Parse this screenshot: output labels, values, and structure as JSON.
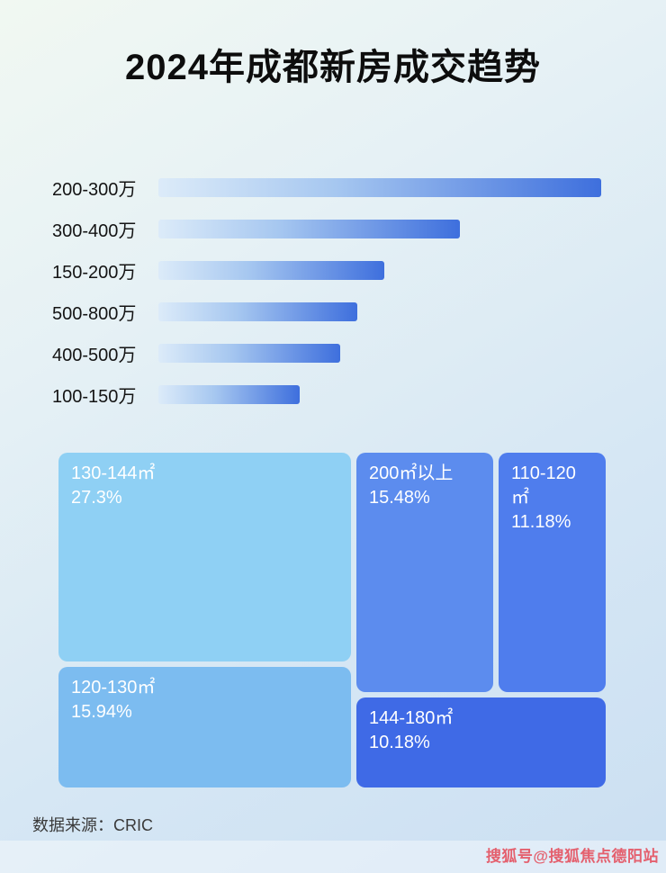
{
  "title": "2024年成都新房成交趋势",
  "chart_data": [
    {
      "type": "bar",
      "orientation": "horizontal",
      "categories": [
        "200-300万",
        "300-400万",
        "150-200万",
        "500-800万",
        "400-500万",
        "100-150万"
      ],
      "relative_length_pct": [
        100,
        68,
        51,
        45,
        41,
        32
      ],
      "bar_gradient": [
        "#dcebf9",
        "#3e6fdd"
      ],
      "grid": false,
      "legend": false
    },
    {
      "type": "treemap",
      "blocks": [
        {
          "label": "130-144㎡",
          "pct": "27.3%",
          "value": 27.3,
          "color": "#8fd0f4"
        },
        {
          "label": "120-130㎡",
          "pct": "15.94%",
          "value": 15.94,
          "color": "#7cbcf0"
        },
        {
          "label": "200㎡以上",
          "pct": "15.48%",
          "value": 15.48,
          "color": "#5c8cee"
        },
        {
          "label": "110-120㎡",
          "pct": "11.18%",
          "value": 11.18,
          "color": "#4f7ded"
        },
        {
          "label": "144-180㎡",
          "pct": "10.18%",
          "value": 10.18,
          "color": "#3f6ae6"
        }
      ]
    }
  ],
  "footer": {
    "source": "数据来源：CRIC"
  },
  "watermark": {
    "text": "搜狐号@搜狐焦点德阳站",
    "color": "#e4606e"
  }
}
